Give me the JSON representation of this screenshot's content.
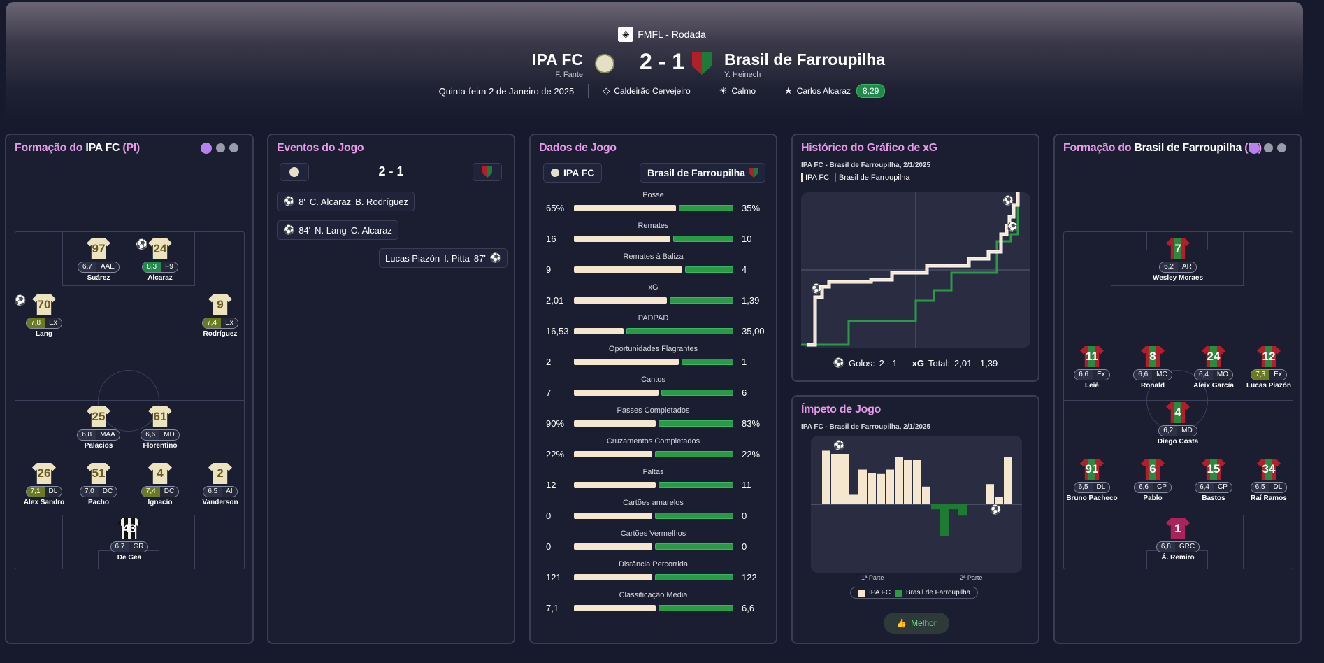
{
  "header": {
    "league": "FMFL - Rodada",
    "home": {
      "name": "IPA FC",
      "coach": "F. Fante"
    },
    "away": {
      "name": "Brasil de Farroupilha",
      "coach": "Y. Heinech"
    },
    "score": "2 - 1",
    "date": "Quinta-feira 2 de Janeiro de 2025",
    "stadium": "Caldeirão Cervejeiro",
    "weather": "Calmo",
    "mvp": "Carlos Alcaraz",
    "mvp_rating": "8,29"
  },
  "home_lineup": {
    "title_prefix": "Formação do ",
    "team": "IPA FC",
    "suffix": " (PI)",
    "players": [
      {
        "num": "97",
        "rating": "6,7",
        "pos": "AAE",
        "name": "Suárez"
      },
      {
        "num": "24",
        "rating": "8,3",
        "pos": "F9",
        "name": "Alcaraz"
      },
      {
        "num": "70",
        "rating": "7,8",
        "pos": "Ex",
        "name": "Lang"
      },
      {
        "num": "9",
        "rating": "7,4",
        "pos": "Ex",
        "name": "Rodríguez"
      },
      {
        "num": "25",
        "rating": "6,8",
        "pos": "MAA",
        "name": "Palacios"
      },
      {
        "num": "61",
        "rating": "6,6",
        "pos": "MD",
        "name": "Florentino"
      },
      {
        "num": "26",
        "rating": "7,1",
        "pos": "DL",
        "name": "Alex Sandro"
      },
      {
        "num": "51",
        "rating": "7,0",
        "pos": "DC",
        "name": "Pacho"
      },
      {
        "num": "4",
        "rating": "7,4",
        "pos": "DC",
        "name": "Ignacio"
      },
      {
        "num": "2",
        "rating": "6,5",
        "pos": "AI",
        "name": "Vanderson"
      },
      {
        "num": "43",
        "rating": "6,7",
        "pos": "GR",
        "name": "De Gea"
      }
    ]
  },
  "away_lineup": {
    "title_prefix": "Formação do ",
    "team": "Brasil de Farroupilha",
    "suffix": " (PI)",
    "players": [
      {
        "num": "7",
        "rating": "6,2",
        "pos": "AR",
        "name": "Wesley Moraes"
      },
      {
        "num": "11",
        "rating": "6,6",
        "pos": "Ex",
        "name": "Leiê"
      },
      {
        "num": "8",
        "rating": "6,6",
        "pos": "MC",
        "name": "Ronald"
      },
      {
        "num": "24",
        "rating": "6,4",
        "pos": "MO",
        "name": "Aleix García"
      },
      {
        "num": "12",
        "rating": "7,3",
        "pos": "Ex",
        "name": "Lucas Piazón"
      },
      {
        "num": "4",
        "rating": "6,2",
        "pos": "MD",
        "name": "Diego Costa"
      },
      {
        "num": "91",
        "rating": "6,5",
        "pos": "DL",
        "name": "Bruno Pacheco"
      },
      {
        "num": "6",
        "rating": "6,6",
        "pos": "CP",
        "name": "Pablo"
      },
      {
        "num": "15",
        "rating": "6,4",
        "pos": "CP",
        "name": "Bastos"
      },
      {
        "num": "34",
        "rating": "6,5",
        "pos": "DL",
        "name": "Raí Ramos"
      },
      {
        "num": "1",
        "rating": "6,8",
        "pos": "GRC",
        "name": "Á. Remiro"
      }
    ]
  },
  "events": {
    "title": "Eventos do Jogo",
    "score": "2 - 1",
    "items": [
      {
        "minute": "8'",
        "scorer": "C. Alcaraz",
        "assist": "B. Rodríguez"
      },
      {
        "minute": "84'",
        "scorer": "N. Lang",
        "assist": "C. Alcaraz"
      },
      {
        "minute": "87'",
        "scorer": "Lucas Piazón",
        "assist": "I. Pitta"
      }
    ]
  },
  "stats": {
    "title": "Dados de Jogo",
    "home": "IPA FC",
    "away": "Brasil de Farroupilha",
    "rows": [
      {
        "label": "Posse",
        "home": "65%",
        "away": "35%",
        "h": 0.65
      },
      {
        "label": "Remates",
        "home": "16",
        "away": "10",
        "h": 0.615
      },
      {
        "label": "Remates à Baliza",
        "home": "9",
        "away": "4",
        "h": 0.69
      },
      {
        "label": "xG",
        "home": "2,01",
        "away": "1,39",
        "h": 0.59
      },
      {
        "label": "PADPAD",
        "home": "16,53",
        "away": "35,00",
        "h": 0.32
      },
      {
        "label": "Oportunidades Flagrantes",
        "home": "2",
        "away": "1",
        "h": 0.667
      },
      {
        "label": "Cantos",
        "home": "7",
        "away": "6",
        "h": 0.54
      },
      {
        "label": "Passes Completados",
        "home": "90%",
        "away": "83%",
        "h": 0.52
      },
      {
        "label": "Cruzamentos Completados",
        "home": "22%",
        "away": "22%",
        "h": 0.5
      },
      {
        "label": "Faltas",
        "home": "12",
        "away": "11",
        "h": 0.52
      },
      {
        "label": "Cartões amarelos",
        "home": "0",
        "away": "0",
        "h": 0.5
      },
      {
        "label": "Cartões Vermelhos",
        "home": "0",
        "away": "0",
        "h": 0.5
      },
      {
        "label": "Distância Percorrida",
        "home": "121",
        "away": "122",
        "h": 0.5
      },
      {
        "label": "Classificação Média",
        "home": "7,1",
        "away": "6,6",
        "h": 0.52
      }
    ]
  },
  "xg_history": {
    "title": "Histórico do Gráfico de xG",
    "subtitle": "IPA FC - Brasil de Farroupilha, 2/1/2025",
    "legend_home": "IPA FC",
    "legend_away": "Brasil de Farroupilha",
    "goals_label": "Golos:",
    "goals_value": "2 - 1",
    "xg_label": "xG",
    "xg_total_label": "Total:",
    "xg_total_value": "2,01 - 1,39"
  },
  "momentum": {
    "title": "Ímpeto de Jogo",
    "subtitle": "IPA FC - Brasil de Farroupilha, 2/1/2025",
    "half1": "1ª Parte",
    "half2": "2ª Parte",
    "legend_home": "IPA FC",
    "legend_away": "Brasil de Farroupilha",
    "button": "Melhor",
    "chart_data": {
      "type": "bar",
      "values": [
        0.85,
        0.8,
        0.8,
        0.15,
        0.55,
        0.5,
        0.48,
        0.55,
        0.75,
        0.7,
        0.7,
        0.28,
        -0.08,
        -0.5,
        -0.08,
        -0.18,
        0,
        0,
        0.32,
        0.12,
        0.75
      ]
    }
  },
  "colors": {
    "accent": "#e59be8",
    "home_bar": "#f5e6d0",
    "away_bar": "#2a9a46",
    "bg": "#161a2c",
    "panel": "#1b1e30"
  }
}
